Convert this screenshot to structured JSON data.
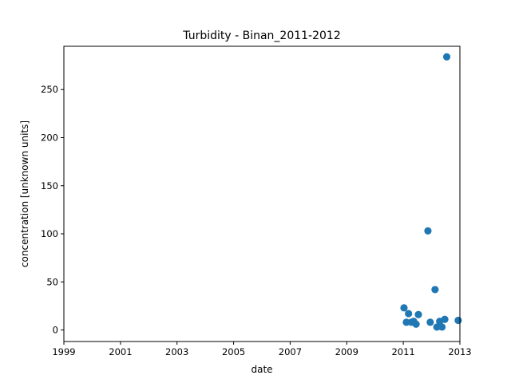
{
  "chart_data": {
    "type": "scatter",
    "title": "Turbidity - Binan_2011-2012",
    "xlabel": "date",
    "ylabel": "concentration [unknown units]",
    "xlim": [
      "1999-01-01",
      "2013-01-01"
    ],
    "ylim": [
      -12,
      295
    ],
    "grid": false,
    "x_ticks": [
      "1999",
      "2001",
      "2003",
      "2005",
      "2007",
      "2009",
      "2011",
      "2013"
    ],
    "y_ticks": [
      0,
      50,
      100,
      150,
      200,
      250
    ],
    "marker_color": "#1f77b4",
    "series": [
      {
        "x": [
          "2011-01-10",
          "2011-02-10",
          "2011-03-10",
          "2011-04-15",
          "2011-05-15",
          "2011-06-15",
          "2011-07-15",
          "2011-11-15",
          "2011-12-15",
          "2012-02-15",
          "2012-03-10",
          "2012-04-15",
          "2012-05-15",
          "2012-06-20",
          "2012-07-15",
          "2012-12-10"
        ],
        "y": [
          23,
          8,
          17,
          8,
          9,
          6,
          16,
          103,
          8,
          42,
          3,
          9,
          3,
          11,
          284,
          10
        ]
      }
    ]
  }
}
